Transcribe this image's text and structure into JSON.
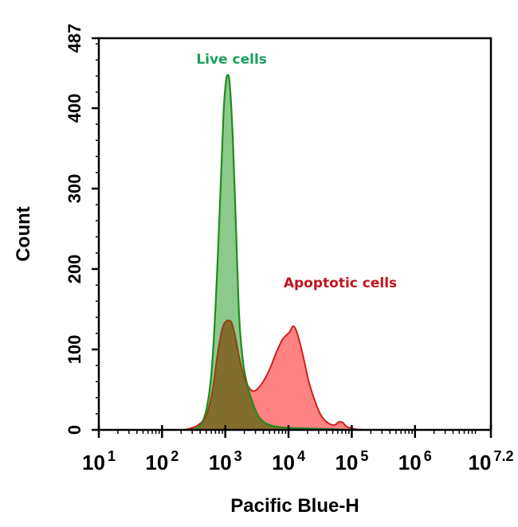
{
  "chart_data": {
    "type": "area",
    "title": "",
    "xlabel": "Pacific Blue-H",
    "ylabel": "Count",
    "x_scale": "log10",
    "xlim_log10": [
      1,
      7.2
    ],
    "ylim": [
      0,
      487
    ],
    "x_ticks": [
      {
        "base": "10",
        "exp": "1",
        "log": 1
      },
      {
        "base": "10",
        "exp": "2",
        "log": 2
      },
      {
        "base": "10",
        "exp": "3",
        "log": 3
      },
      {
        "base": "10",
        "exp": "4",
        "log": 4
      },
      {
        "base": "10",
        "exp": "5",
        "log": 5
      },
      {
        "base": "10",
        "exp": "6",
        "log": 6
      },
      {
        "base": "10",
        "exp": "7.2",
        "log": 7.2
      }
    ],
    "y_ticks": [
      0,
      100,
      200,
      300,
      400,
      487
    ],
    "grid": false,
    "legend": "none (inline annotations)",
    "annotations": [
      {
        "text": "Live cells",
        "color": "#1aa05a",
        "x_log10": 3.1,
        "y": 460
      },
      {
        "text": "Apoptotic cells",
        "color": "#c0141e",
        "x_log10": 4.8,
        "y": 182
      }
    ],
    "series": [
      {
        "name": "Live cells",
        "stroke": "#1e8c1e",
        "fill": "#2e9e2e",
        "fill_opacity": 0.55,
        "points_log10": [
          [
            2.45,
            0
          ],
          [
            2.6,
            5
          ],
          [
            2.7,
            25
          ],
          [
            2.78,
            70
          ],
          [
            2.85,
            160
          ],
          [
            2.92,
            290
          ],
          [
            2.97,
            390
          ],
          [
            3.0,
            425
          ],
          [
            3.03,
            441
          ],
          [
            3.07,
            430
          ],
          [
            3.12,
            360
          ],
          [
            3.17,
            250
          ],
          [
            3.22,
            140
          ],
          [
            3.28,
            85
          ],
          [
            3.35,
            55
          ],
          [
            3.45,
            30
          ],
          [
            3.55,
            14
          ],
          [
            3.7,
            6
          ],
          [
            3.9,
            3
          ],
          [
            4.2,
            2
          ],
          [
            4.6,
            1
          ],
          [
            5.0,
            0
          ]
        ]
      },
      {
        "name": "Apoptotic cells",
        "stroke": "#d21e1e",
        "fill": "#ff6464",
        "fill_opacity": 0.8,
        "overlap_color": "#7f6a2a",
        "points_log10": [
          [
            2.35,
            0
          ],
          [
            2.55,
            5
          ],
          [
            2.7,
            18
          ],
          [
            2.8,
            50
          ],
          [
            2.88,
            95
          ],
          [
            2.95,
            125
          ],
          [
            3.0,
            134
          ],
          [
            3.05,
            136
          ],
          [
            3.1,
            133
          ],
          [
            3.16,
            115
          ],
          [
            3.22,
            90
          ],
          [
            3.3,
            65
          ],
          [
            3.38,
            52
          ],
          [
            3.45,
            48
          ],
          [
            3.52,
            52
          ],
          [
            3.6,
            60
          ],
          [
            3.7,
            75
          ],
          [
            3.8,
            95
          ],
          [
            3.9,
            112
          ],
          [
            3.97,
            118
          ],
          [
            4.02,
            122
          ],
          [
            4.07,
            129
          ],
          [
            4.12,
            124
          ],
          [
            4.18,
            108
          ],
          [
            4.25,
            85
          ],
          [
            4.32,
            60
          ],
          [
            4.4,
            40
          ],
          [
            4.5,
            20
          ],
          [
            4.6,
            10
          ],
          [
            4.72,
            6
          ],
          [
            4.8,
            10
          ],
          [
            4.86,
            9
          ],
          [
            4.92,
            4
          ],
          [
            5.05,
            1
          ],
          [
            5.2,
            0
          ]
        ]
      }
    ]
  },
  "axes": {
    "x_label": "Pacific Blue-H",
    "y_label": "Count"
  }
}
